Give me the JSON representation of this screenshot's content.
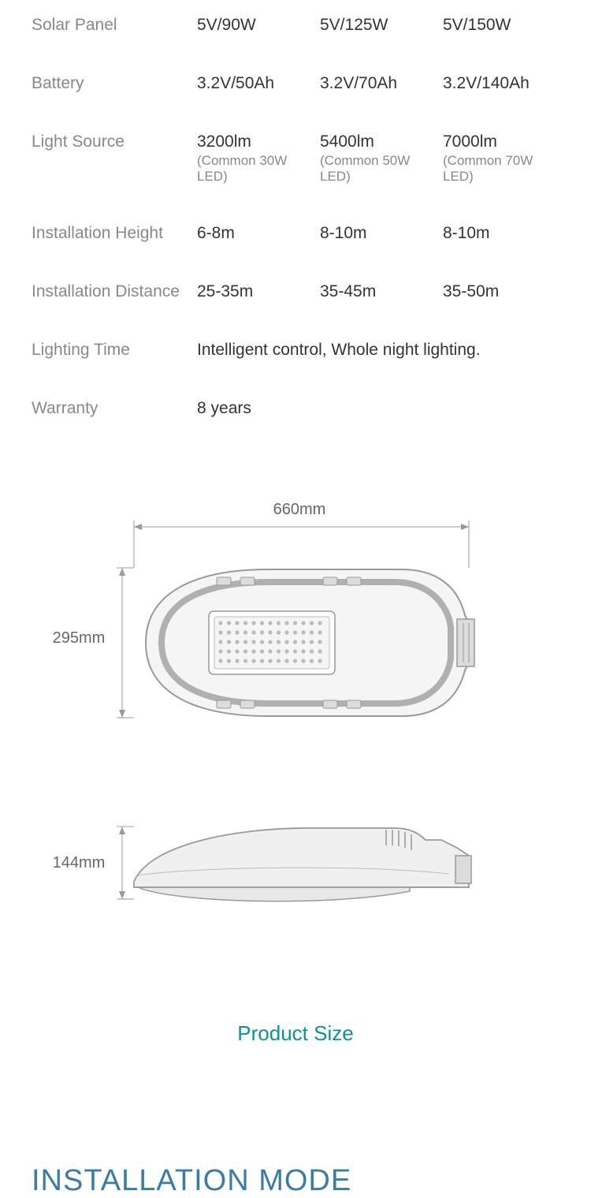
{
  "specs": {
    "solar_panel": {
      "label": "Solar Panel",
      "c1": "5V/90W",
      "c2": "5V/125W",
      "c3": "5V/150W"
    },
    "battery": {
      "label": "Battery",
      "c1": "3.2V/50Ah",
      "c2": "3.2V/70Ah",
      "c3": "3.2V/140Ah"
    },
    "light_source": {
      "label": "Light Source",
      "c1": "3200lm",
      "c1_sub": "(Common 30W LED)",
      "c2": "5400lm",
      "c2_sub": "(Common 50W LED)",
      "c3": "7000lm",
      "c3_sub": "(Common 70W LED)"
    },
    "install_height": {
      "label": "Installation Height",
      "c1": "6-8m",
      "c2": "8-10m",
      "c3": "8-10m"
    },
    "install_distance": {
      "label": "Installation Distance",
      "c1": "25-35m",
      "c2": "35-45m",
      "c3": "35-50m"
    },
    "lighting_time": {
      "label": "Lighting Time",
      "value": "Intelligent control, Whole night lighting."
    },
    "warranty": {
      "label": "Warranty",
      "value": "8 years"
    }
  },
  "diagram": {
    "width_label": "660mm",
    "height_label": "295mm",
    "depth_label": "144mm",
    "caption": "Product Size",
    "colors": {
      "stroke": "#999999",
      "fill_light": "#f5f5f5",
      "fill_mid": "#dcdcdc",
      "fill_dark": "#b0b0b0",
      "led_dot": "#bbbbbb",
      "text": "#666666"
    }
  },
  "section_heading": "INSTALLATION MODE"
}
